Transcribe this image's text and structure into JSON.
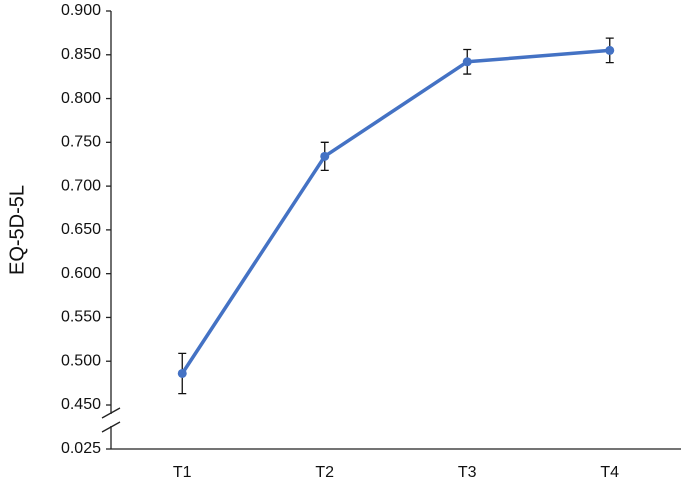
{
  "chart_data": {
    "type": "line",
    "y_label": "EQ-5D-5L",
    "categories": [
      "T1",
      "T2",
      "T3",
      "T4"
    ],
    "series": [
      {
        "name": "EQ-5D-5L",
        "color": "#4472c4",
        "values": [
          0.486,
          0.734,
          0.842,
          0.855
        ],
        "error": [
          0.023,
          0.016,
          0.014,
          0.014
        ]
      }
    ],
    "ylim": [
      0.025,
      0.9
    ],
    "axis_break": [
      0.025,
      0.45
    ],
    "yticks": [
      {
        "value": 0.025,
        "label": "0.025"
      },
      {
        "value": 0.45,
        "label": "0.450"
      },
      {
        "value": 0.5,
        "label": "0.500"
      },
      {
        "value": 0.55,
        "label": "0.550"
      },
      {
        "value": 0.6,
        "label": "0.600"
      },
      {
        "value": 0.65,
        "label": "0.650"
      },
      {
        "value": 0.7,
        "label": "0.700"
      },
      {
        "value": 0.75,
        "label": "0.750"
      },
      {
        "value": 0.8,
        "label": "0.800"
      },
      {
        "value": 0.85,
        "label": "0.850"
      },
      {
        "value": 0.9,
        "label": "0.900"
      }
    ]
  }
}
